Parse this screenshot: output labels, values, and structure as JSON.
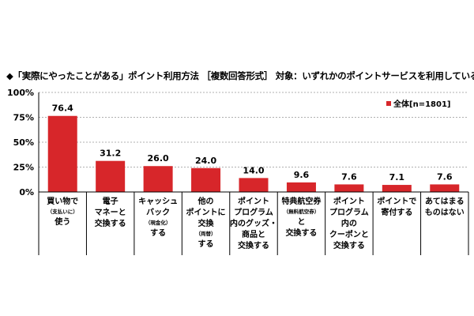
{
  "title": "◆「実際にやったことがある」ポイント利用方法 ［複数回答形式］ 対象：いずれかのポイントサービスを利用している人",
  "legend_label": "全体[n=1801]",
  "colors": {
    "bar": "#d7262a",
    "axis": "#000000",
    "grid": "#b0b0b0"
  },
  "chart_data": {
    "type": "bar",
    "title": "◆「実際にやったことがある」ポイント利用方法 ［複数回答形式］ 対象：いずれかのポイントサービスを利用している人",
    "ylim": [
      0,
      100
    ],
    "yticks": [
      "0%",
      "25%",
      "50%",
      "75%",
      "100%"
    ],
    "legend_position": "top-right",
    "categories": [
      [
        {
          "t": "買い物で"
        },
        {
          "t": "（支払いに）",
          "s": 1
        },
        {
          "t": "使う"
        }
      ],
      [
        {
          "t": "電子"
        },
        {
          "t": "マネーと"
        },
        {
          "t": "交換する"
        }
      ],
      [
        {
          "t": "キャッシュ"
        },
        {
          "t": "バック"
        },
        {
          "t": "（現金化）",
          "s": 1
        },
        {
          "t": "する"
        }
      ],
      [
        {
          "t": "他の"
        },
        {
          "t": "ポイントに"
        },
        {
          "t": "交換"
        },
        {
          "t": "（両替）",
          "s": 1
        },
        {
          "t": "する"
        }
      ],
      [
        {
          "t": "ポイント"
        },
        {
          "t": "プログラム"
        },
        {
          "t": "内のグッズ・"
        },
        {
          "t": "商品と"
        },
        {
          "t": "交換する"
        }
      ],
      [
        {
          "t": "特典航空券"
        },
        {
          "t": "（無料航空券）",
          "s": 1
        },
        {
          "t": "と"
        },
        {
          "t": "交換する"
        }
      ],
      [
        {
          "t": "ポイント"
        },
        {
          "t": "プログラム"
        },
        {
          "t": "内の"
        },
        {
          "t": "クーポンと"
        },
        {
          "t": "交換する"
        }
      ],
      [
        {
          "t": "ポイントで"
        },
        {
          "t": "寄付する"
        }
      ],
      [
        {
          "t": "あてはまる"
        },
        {
          "t": "ものはない"
        }
      ]
    ],
    "series": [
      {
        "name": "全体[n=1801]",
        "values": [
          76.4,
          31.2,
          26.0,
          24.0,
          14.0,
          9.6,
          7.6,
          7.1,
          7.6
        ]
      }
    ],
    "value_labels": [
      "76.4",
      "31.2",
      "26.0",
      "24.0",
      "14.0",
      "9.6",
      "7.6",
      "7.1",
      "7.6"
    ]
  }
}
